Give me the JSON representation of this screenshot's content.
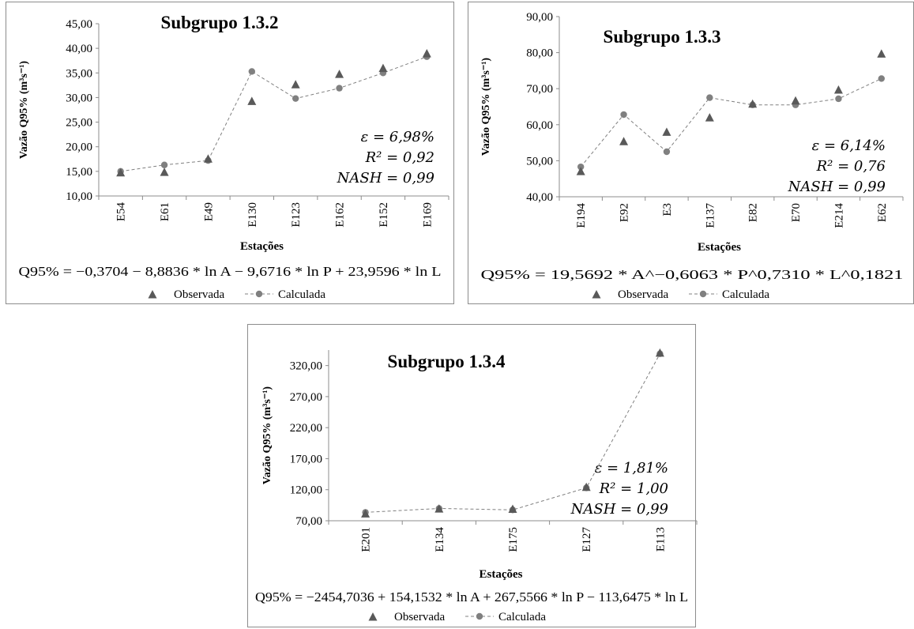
{
  "chart_data": [
    {
      "type": "line",
      "title": "Subgrupo 1.3.2",
      "xlabel": "Estações",
      "ylabel": "Vazão Q95% (m³s⁻¹)",
      "ylim": [
        10,
        45
      ],
      "ytick_step": 5,
      "ytick_labels": [
        "10,00",
        "15,00",
        "20,00",
        "25,00",
        "30,00",
        "35,00",
        "40,00",
        "45,00"
      ],
      "categories": [
        "E54",
        "E61",
        "E49",
        "E130",
        "E123",
        "E162",
        "E152",
        "E169"
      ],
      "series": [
        {
          "name": "Observada",
          "marker": "triangle",
          "values": [
            14.7,
            14.8,
            17.5,
            29.2,
            32.6,
            34.7,
            35.9,
            38.9
          ]
        },
        {
          "name": "Calculada",
          "marker": "circle-dashed",
          "values": [
            15.0,
            16.3,
            17.2,
            35.3,
            29.8,
            31.9,
            35.0,
            38.3
          ]
        }
      ],
      "stats": [
        "ε = 6,98%",
        "R² = 0,92",
        "NASH = 0,99"
      ],
      "equation": "Q95% = −0,3704 − 8,8836 * ln A − 9,6716 * ln P + 23,9596 * ln L",
      "legend": [
        "Observada",
        "Calculada"
      ],
      "grid": false,
      "legend_position": "bottom"
    },
    {
      "type": "line",
      "title": "Subgrupo 1.3.3",
      "xlabel": "Estações",
      "ylabel": "Vazão Q95% (m³s⁻¹)",
      "ylim": [
        40,
        90
      ],
      "ytick_step": 10,
      "ytick_labels": [
        "40,00",
        "50,00",
        "60,00",
        "70,00",
        "80,00",
        "90,00"
      ],
      "categories": [
        "E194",
        "E92",
        "E3",
        "E137",
        "E82",
        "E70",
        "E214",
        "E62"
      ],
      "series": [
        {
          "name": "Observada",
          "marker": "triangle",
          "values": [
            47.0,
            55.3,
            57.9,
            61.9,
            65.7,
            66.6,
            69.6,
            79.6
          ]
        },
        {
          "name": "Calculada",
          "marker": "circle-dashed",
          "values": [
            48.3,
            62.8,
            52.5,
            67.5,
            65.5,
            65.5,
            67.2,
            72.8
          ]
        }
      ],
      "stats": [
        "ε = 6,14%",
        "R² = 0,76",
        "NASH = 0,99"
      ],
      "equation": "Q95% = 19,5692 * A^−0,6063 * P^0,7310 * L^0,1821",
      "legend": [
        "Observada",
        "Calculada"
      ],
      "grid": false,
      "legend_position": "bottom"
    },
    {
      "type": "line",
      "title": "Subgrupo 1.3.4",
      "xlabel": "Estações",
      "ylabel": "Vazão Q95% (m³s⁻¹)",
      "ylim": [
        70,
        345
      ],
      "ytick_step": 50,
      "ytick_labels": [
        "70,00",
        "120,00",
        "170,00",
        "220,00",
        "270,00",
        "320,00"
      ],
      "categories": [
        "E201",
        "E134",
        "E175",
        "E127",
        "E113"
      ],
      "series": [
        {
          "name": "Observada",
          "marker": "triangle",
          "values": [
            81.0,
            89.0,
            88.5,
            123.8,
            340.0
          ]
        },
        {
          "name": "Calculada",
          "marker": "circle-dashed",
          "values": [
            83.5,
            89.8,
            87.5,
            123.0,
            339.0
          ]
        }
      ],
      "stats": [
        "ε = 1,81%",
        "R² = 1,00",
        "NASH = 0,99"
      ],
      "equation": "Q95% = −2454,7036 + 154,1532 * ln A + 267,5566 * ln P − 113,6475 * ln L",
      "legend": [
        "Observada",
        "Calculada"
      ],
      "grid": false,
      "legend_position": "bottom"
    }
  ],
  "colors": {
    "observed": "#595959",
    "calculated": "#808080",
    "axis": "#8c8c8c"
  }
}
